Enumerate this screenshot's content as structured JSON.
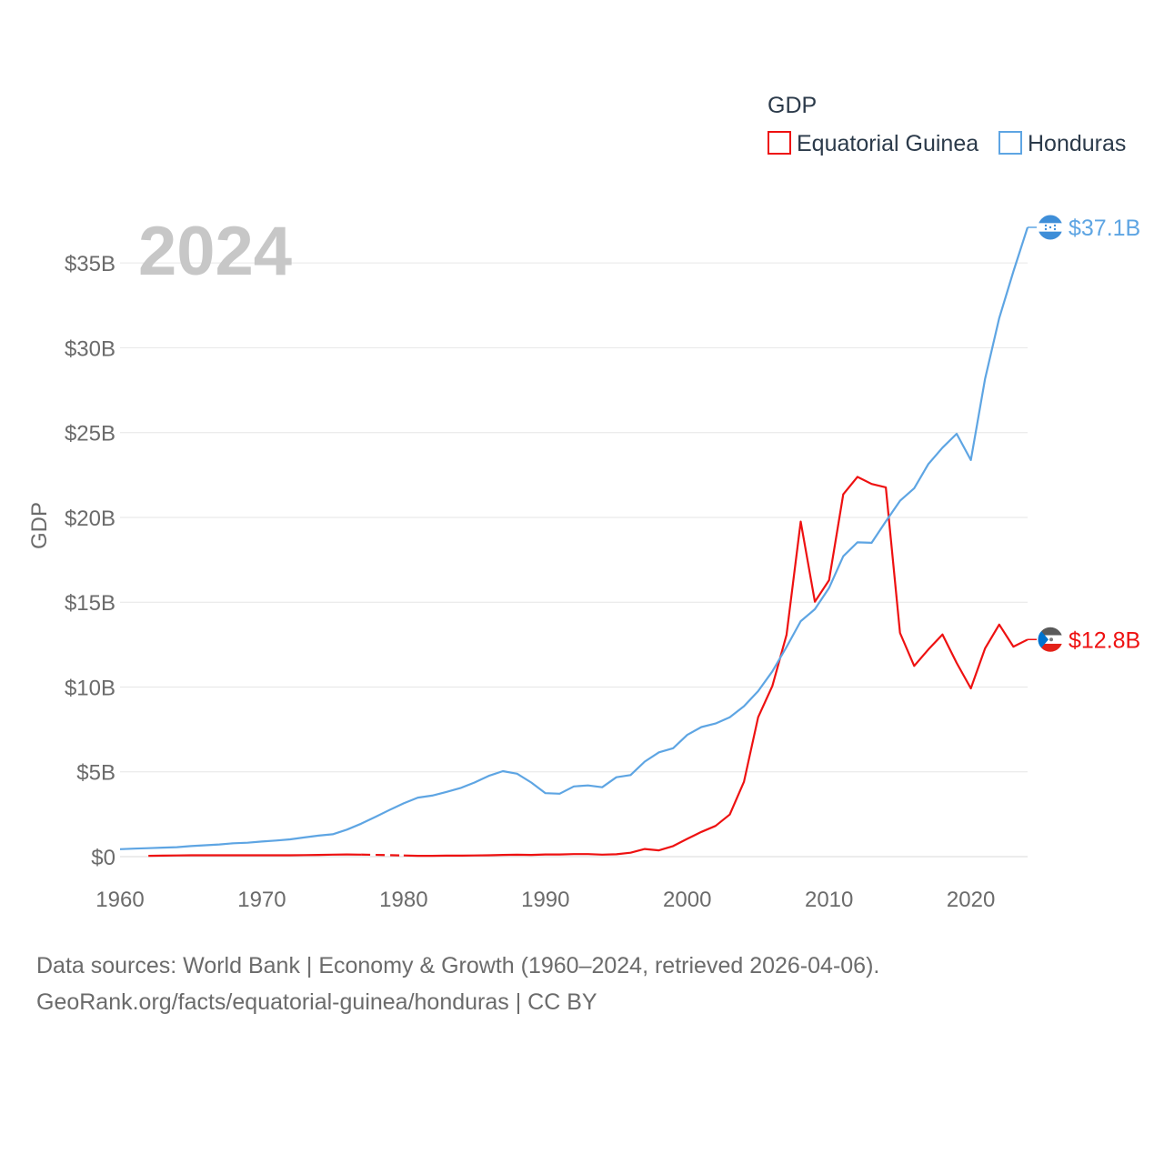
{
  "chart_data": {
    "type": "line",
    "title": "GDP",
    "ylabel": "GDP",
    "xlabel": "",
    "year_label": "2024",
    "xlim": [
      1960,
      2024
    ],
    "ylim": [
      0,
      37100000000
    ],
    "x_ticks": [
      "1960",
      "1970",
      "1980",
      "1990",
      "2000",
      "2010",
      "2020"
    ],
    "y_ticks": [
      {
        "value": 0,
        "label": "$0"
      },
      {
        "value": 5000000000,
        "label": "$5B"
      },
      {
        "value": 10000000000,
        "label": "$10B"
      },
      {
        "value": 15000000000,
        "label": "$15B"
      },
      {
        "value": 20000000000,
        "label": "$20B"
      },
      {
        "value": 25000000000,
        "label": "$25B"
      },
      {
        "value": 30000000000,
        "label": "$30B"
      },
      {
        "value": 35000000000,
        "label": "$35B"
      }
    ],
    "legend": {
      "title": "GDP",
      "placement": "top-right"
    },
    "grid": true,
    "series": [
      {
        "name": "Equatorial Guinea",
        "color": "#ee1111",
        "end_label": "$12.8B",
        "flag": "equatorial-guinea-flag",
        "x": [
          1962,
          1963,
          1964,
          1965,
          1966,
          1967,
          1968,
          1969,
          1970,
          1971,
          1972,
          1973,
          1974,
          1975,
          1976,
          1977,
          1978,
          1979,
          1980,
          1981,
          1982,
          1983,
          1984,
          1985,
          1986,
          1987,
          1988,
          1989,
          1990,
          1991,
          1992,
          1993,
          1994,
          1995,
          1996,
          1997,
          1998,
          1999,
          2000,
          2001,
          2002,
          2003,
          2004,
          2005,
          2006,
          2007,
          2008,
          2009,
          2010,
          2011,
          2012,
          2013,
          2014,
          2015,
          2016,
          2017,
          2018,
          2019,
          2020,
          2021,
          2022,
          2023,
          2024
        ],
        "values": [
          50000000.0,
          60000000.0,
          70000000.0,
          80000000.0,
          80000000.0,
          80000000.0,
          80000000.0,
          80000000.0,
          80000000.0,
          80000000.0,
          80000000.0,
          90000000.0,
          100000000.0,
          120000000.0,
          130000000.0,
          120000000.0,
          null,
          null,
          70000000.0,
          50000000.0,
          50000000.0,
          60000000.0,
          60000000.0,
          70000000.0,
          80000000.0,
          100000000.0,
          110000000.0,
          100000000.0,
          130000000.0,
          130000000.0,
          150000000.0,
          150000000.0,
          120000000.0,
          140000000.0,
          230000000.0,
          450000000.0,
          370000000.0,
          620000000.0,
          1050000000.0,
          1460000000.0,
          1810000000.0,
          2480000000.0,
          4410000000.0,
          8220000000.0,
          10060000000.0,
          13070000000.0,
          19750000000.0,
          15030000000.0,
          16300000000.0,
          21360000000.0,
          22390000000.0,
          21970000000.0,
          21770000000.0,
          13190000000.0,
          11240000000.0,
          12210000000.0,
          13100000000.0,
          11420000000.0,
          9920000000.0,
          12270000000.0,
          13680000000.0,
          12380000000.0,
          12800000000.0
        ]
      },
      {
        "name": "Honduras",
        "color": "#5ea5e3",
        "end_label": "$37.1B",
        "flag": "honduras-flag",
        "x": [
          1960,
          1961,
          1962,
          1963,
          1964,
          1965,
          1966,
          1967,
          1968,
          1969,
          1970,
          1971,
          1972,
          1973,
          1974,
          1975,
          1976,
          1977,
          1978,
          1979,
          1980,
          1981,
          1982,
          1983,
          1984,
          1985,
          1986,
          1987,
          1988,
          1989,
          1990,
          1991,
          1992,
          1993,
          1994,
          1995,
          1996,
          1997,
          1998,
          1999,
          2000,
          2001,
          2002,
          2003,
          2004,
          2005,
          2006,
          2007,
          2008,
          2009,
          2010,
          2011,
          2012,
          2013,
          2014,
          2015,
          2016,
          2017,
          2018,
          2019,
          2020,
          2021,
          2022,
          2023,
          2024
        ],
        "values": [
          440000000.0,
          470000000.0,
          500000000.0,
          530000000.0,
          560000000.0,
          620000000.0,
          670000000.0,
          720000000.0,
          790000000.0,
          820000000.0,
          890000000.0,
          950000000.0,
          1020000000.0,
          1130000000.0,
          1240000000.0,
          1320000000.0,
          1590000000.0,
          1940000000.0,
          2340000000.0,
          2750000000.0,
          3140000000.0,
          3480000000.0,
          3600000000.0,
          3810000000.0,
          4040000000.0,
          4370000000.0,
          4760000000.0,
          5040000000.0,
          4890000000.0,
          4370000000.0,
          3740000000.0,
          3710000000.0,
          4140000000.0,
          4200000000.0,
          4090000000.0,
          4680000000.0,
          4810000000.0,
          5600000000.0,
          6150000000.0,
          6390000000.0,
          7180000000.0,
          7640000000.0,
          7850000000.0,
          8220000000.0,
          8870000000.0,
          9760000000.0,
          10920000000.0,
          12360000000.0,
          13880000000.0,
          14590000000.0,
          15840000000.0,
          17710000000.0,
          18530000000.0,
          18500000000.0,
          19760000000.0,
          20980000000.0,
          21720000000.0,
          23140000000.0,
          24110000000.0,
          24930000000.0,
          23380000000.0,
          28160000000.0,
          31750000000.0,
          34500000000.0,
          37100000000.0
        ]
      }
    ]
  },
  "footer": {
    "line1": "Data sources: World Bank | Economy & Growth (1960–2024, retrieved 2026-04-06).",
    "line2": "GeoRank.org/facts/equatorial-guinea/honduras | CC BY"
  }
}
